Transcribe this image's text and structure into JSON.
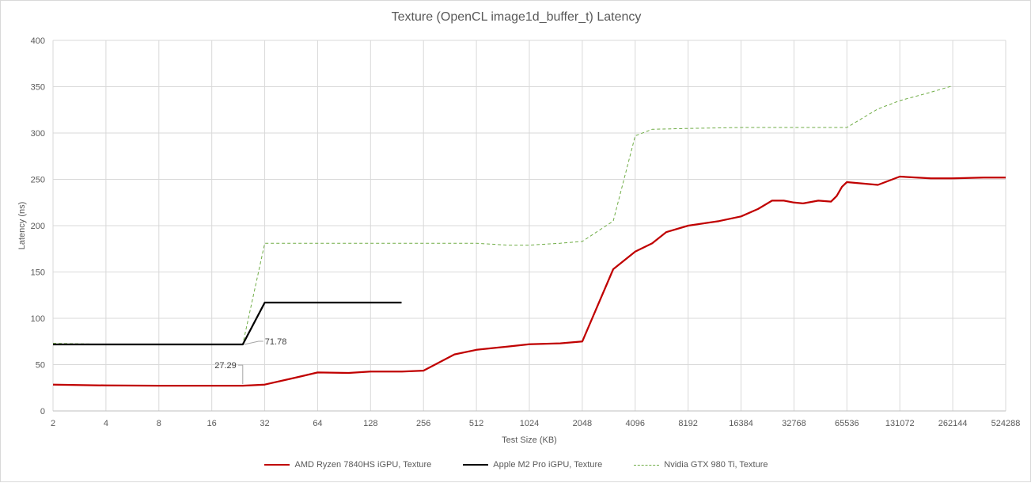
{
  "chart_data": {
    "type": "line",
    "title": "Texture (OpenCL image1d_buffer_t) Latency",
    "xlabel": "Test Size (KB)",
    "ylabel": "Latency (ns)",
    "x_scale": "log2",
    "xlim": [
      2,
      524288
    ],
    "ylim": [
      0,
      400
    ],
    "x_ticks": [
      2,
      4,
      8,
      16,
      32,
      64,
      128,
      256,
      512,
      1024,
      2048,
      4096,
      8192,
      16384,
      32768,
      65536,
      131072,
      262144,
      524288
    ],
    "y_ticks": [
      0,
      50,
      100,
      150,
      200,
      250,
      300,
      350,
      400
    ],
    "grid": true,
    "legend_position": "bottom",
    "series": [
      {
        "name": "AMD Ryzen 7840HS iGPU, Texture",
        "color": "#c00000",
        "style": "solid",
        "points": [
          [
            2,
            28.5
          ],
          [
            4,
            27.5
          ],
          [
            8,
            27.3
          ],
          [
            16,
            27.3
          ],
          [
            24,
            27.29
          ],
          [
            32,
            28.5
          ],
          [
            48,
            36
          ],
          [
            64,
            41.5
          ],
          [
            96,
            41
          ],
          [
            128,
            42.5
          ],
          [
            192,
            42.5
          ],
          [
            256,
            43.5
          ],
          [
            384,
            61
          ],
          [
            512,
            66
          ],
          [
            768,
            69.5
          ],
          [
            1024,
            72
          ],
          [
            1536,
            73
          ],
          [
            2048,
            75
          ],
          [
            3072,
            153
          ],
          [
            4096,
            172
          ],
          [
            5120,
            181
          ],
          [
            6144,
            193
          ],
          [
            8192,
            200
          ],
          [
            12288,
            205
          ],
          [
            16384,
            210
          ],
          [
            20480,
            218
          ],
          [
            24576,
            227
          ],
          [
            28672,
            227
          ],
          [
            32768,
            225
          ],
          [
            36864,
            224
          ],
          [
            45056,
            227
          ],
          [
            53248,
            226
          ],
          [
            57344,
            232
          ],
          [
            61440,
            242
          ],
          [
            65536,
            247
          ],
          [
            98304,
            244
          ],
          [
            131072,
            253
          ],
          [
            196608,
            251
          ],
          [
            262144,
            251
          ],
          [
            393216,
            252
          ],
          [
            524288,
            252
          ]
        ]
      },
      {
        "name": "Apple M2 Pro iGPU, Texture",
        "color": "#000000",
        "style": "solid",
        "points": [
          [
            2,
            71.78
          ],
          [
            4,
            71.78
          ],
          [
            8,
            71.78
          ],
          [
            16,
            71.78
          ],
          [
            24,
            71.78
          ],
          [
            32,
            117
          ],
          [
            48,
            117
          ],
          [
            64,
            117
          ],
          [
            96,
            117
          ],
          [
            128,
            117
          ],
          [
            192,
            117
          ]
        ]
      },
      {
        "name": "Nvidia GTX 980 Ti, Texture",
        "color": "#70ad47",
        "style": "dashed",
        "points": [
          [
            2,
            73
          ],
          [
            4,
            72
          ],
          [
            8,
            72
          ],
          [
            16,
            72
          ],
          [
            24,
            72
          ],
          [
            32,
            181
          ],
          [
            64,
            181
          ],
          [
            128,
            181
          ],
          [
            256,
            181
          ],
          [
            512,
            181
          ],
          [
            768,
            179
          ],
          [
            1024,
            179
          ],
          [
            1536,
            181
          ],
          [
            2048,
            183
          ],
          [
            3072,
            205
          ],
          [
            4096,
            297
          ],
          [
            5120,
            304
          ],
          [
            8192,
            305
          ],
          [
            16384,
            306
          ],
          [
            32768,
            306
          ],
          [
            49152,
            306
          ],
          [
            65536,
            306
          ],
          [
            98304,
            326
          ],
          [
            131072,
            335
          ],
          [
            196608,
            344
          ],
          [
            262144,
            351
          ]
        ]
      }
    ],
    "annotations": [
      {
        "label": "71.78",
        "point": [
          24,
          71.78
        ]
      },
      {
        "label": "27.29",
        "point": [
          24,
          27.29
        ]
      }
    ]
  }
}
